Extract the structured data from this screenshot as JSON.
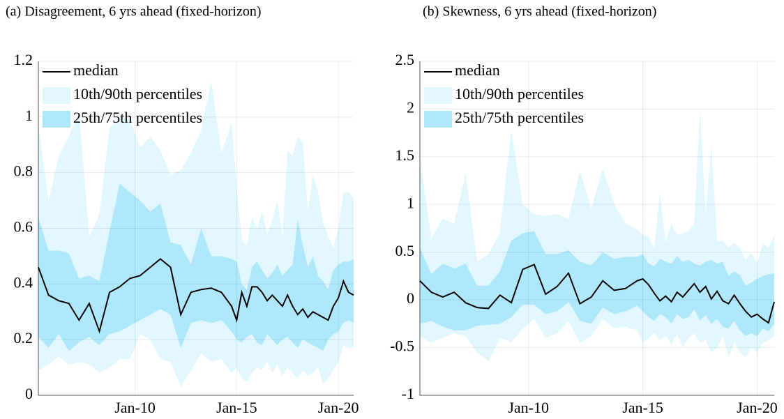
{
  "chart_data": [
    {
      "type": "band",
      "title": "(a) Disagreement, 6 yrs ahead (fixed-horizon)",
      "x": [
        2005.25,
        2005.75,
        2006.25,
        2006.75,
        2007.25,
        2007.75,
        2008.25,
        2008.75,
        2009.25,
        2009.75,
        2010.25,
        2010.75,
        2011.25,
        2011.75,
        2012.25,
        2012.75,
        2013.25,
        2013.75,
        2014.25,
        2014.75,
        2015.0,
        2015.25,
        2015.5,
        2015.75,
        2016.0,
        2016.25,
        2016.5,
        2016.75,
        2017.0,
        2017.25,
        2017.5,
        2017.75,
        2018.0,
        2018.25,
        2018.5,
        2018.75,
        2019.0,
        2019.25,
        2019.5,
        2019.75,
        2020.0,
        2020.25,
        2020.5,
        2020.75
      ],
      "xlim": [
        2005.25,
        2020.75
      ],
      "xticks": [
        {
          "value": 2010,
          "label": "Jan-10"
        },
        {
          "value": 2015,
          "label": "Jan-15"
        },
        {
          "value": 2020,
          "label": "Jan-20"
        }
      ],
      "ylim": [
        0,
        1.2
      ],
      "yticks": [
        0,
        0.2,
        0.4,
        0.6,
        0.8,
        1,
        1.2
      ],
      "grid": true,
      "series": [
        {
          "name": "median",
          "color": "#000000",
          "values": [
            0.46,
            0.36,
            0.34,
            0.33,
            0.27,
            0.33,
            0.23,
            0.37,
            0.39,
            0.42,
            0.43,
            0.46,
            0.49,
            0.46,
            0.29,
            0.37,
            0.38,
            0.385,
            0.37,
            0.32,
            0.27,
            0.37,
            0.32,
            0.39,
            0.39,
            0.37,
            0.34,
            0.36,
            0.34,
            0.32,
            0.36,
            0.32,
            0.29,
            0.31,
            0.28,
            0.3,
            0.29,
            0.28,
            0.27,
            0.32,
            0.35,
            0.41,
            0.37,
            0.36
          ]
        },
        {
          "name": "10th/90th percentiles",
          "color": "#e2f7fd",
          "lower": [
            0.09,
            0.11,
            0.14,
            0.11,
            0.12,
            0.11,
            0.08,
            0.1,
            0.13,
            0.13,
            0.22,
            0.2,
            0.13,
            0.12,
            0.03,
            0.09,
            0.15,
            0.12,
            0.13,
            0.08,
            0.1,
            0.06,
            0.05,
            0.08,
            0.1,
            0.09,
            0.12,
            0.08,
            0.11,
            0.07,
            0.1,
            0.08,
            0.06,
            0.09,
            0.07,
            0.08,
            0.1,
            0.04,
            0.06,
            0.09,
            0.12,
            0.18,
            0.17,
            0.17
          ],
          "upper": [
            0.97,
            0.7,
            0.86,
            0.93,
            1.02,
            0.57,
            0.65,
            0.96,
            1.0,
            0.99,
            0.89,
            0.93,
            0.88,
            0.79,
            0.81,
            0.87,
            0.95,
            1.13,
            0.87,
            0.98,
            0.75,
            0.56,
            0.54,
            0.64,
            0.6,
            0.66,
            0.58,
            0.63,
            0.7,
            0.57,
            0.88,
            0.86,
            0.93,
            0.91,
            0.66,
            0.79,
            0.73,
            0.62,
            0.57,
            0.53,
            0.6,
            0.73,
            0.73,
            0.71
          ]
        },
        {
          "name": "25th/75th percentiles",
          "color": "#aee8fa",
          "lower": [
            0.21,
            0.17,
            0.22,
            0.16,
            0.19,
            0.21,
            0.18,
            0.22,
            0.23,
            0.25,
            0.27,
            0.29,
            0.31,
            0.29,
            0.17,
            0.26,
            0.27,
            0.26,
            0.27,
            0.23,
            0.2,
            0.19,
            0.21,
            0.22,
            0.19,
            0.18,
            0.22,
            0.2,
            0.18,
            0.2,
            0.21,
            0.19,
            0.17,
            0.2,
            0.19,
            0.18,
            0.17,
            0.16,
            0.2,
            0.22,
            0.23,
            0.26,
            0.27,
            0.26
          ],
          "upper": [
            0.64,
            0.52,
            0.52,
            0.51,
            0.42,
            0.43,
            0.41,
            0.59,
            0.76,
            0.73,
            0.7,
            0.66,
            0.69,
            0.55,
            0.54,
            0.47,
            0.6,
            0.5,
            0.5,
            0.49,
            0.48,
            0.4,
            0.38,
            0.46,
            0.48,
            0.45,
            0.42,
            0.44,
            0.47,
            0.43,
            0.45,
            0.47,
            0.63,
            0.54,
            0.46,
            0.5,
            0.43,
            0.41,
            0.38,
            0.45,
            0.47,
            0.48,
            0.48,
            0.49
          ]
        }
      ]
    },
    {
      "type": "band",
      "title": "(b) Skewness, 6 yrs ahead (fixed-horizon)",
      "x": [
        2005.25,
        2005.75,
        2006.25,
        2006.75,
        2007.25,
        2007.75,
        2008.25,
        2008.75,
        2009.25,
        2009.75,
        2010.25,
        2010.75,
        2011.25,
        2011.75,
        2012.25,
        2012.75,
        2013.25,
        2013.75,
        2014.25,
        2014.75,
        2015.0,
        2015.25,
        2015.5,
        2015.75,
        2016.0,
        2016.25,
        2016.5,
        2016.75,
        2017.0,
        2017.25,
        2017.5,
        2017.75,
        2018.0,
        2018.25,
        2018.5,
        2018.75,
        2019.0,
        2019.25,
        2019.5,
        2019.75,
        2020.0,
        2020.25,
        2020.5,
        2020.75
      ],
      "xlim": [
        2005.25,
        2020.75
      ],
      "xticks": [
        {
          "value": 2010,
          "label": "Jan-10"
        },
        {
          "value": 2015,
          "label": "Jan-15"
        },
        {
          "value": 2020,
          "label": "Jan-20"
        }
      ],
      "ylim": [
        -1,
        2.5
      ],
      "yticks": [
        -1,
        -0.5,
        0,
        0.5,
        1,
        1.5,
        2,
        2.5
      ],
      "grid": true,
      "series": [
        {
          "name": "median",
          "color": "#000000",
          "values": [
            0.2,
            0.08,
            0.03,
            0.08,
            -0.03,
            -0.08,
            -0.09,
            0.05,
            -0.03,
            0.32,
            0.37,
            0.06,
            0.14,
            0.28,
            -0.04,
            0.03,
            0.2,
            0.1,
            0.12,
            0.2,
            0.22,
            0.16,
            0.07,
            -0.01,
            0.04,
            -0.02,
            0.08,
            0.03,
            0.1,
            0.17,
            0.08,
            0.14,
            0.01,
            0.09,
            -0.01,
            -0.04,
            0.05,
            -0.04,
            -0.12,
            -0.18,
            -0.15,
            -0.2,
            -0.24,
            -0.02
          ]
        },
        {
          "name": "10th/90th percentiles",
          "color": "#e2f7fd",
          "lower": [
            -0.38,
            -0.45,
            -0.4,
            -0.35,
            -0.38,
            -0.55,
            -0.64,
            -0.4,
            -0.44,
            -0.3,
            -0.2,
            -0.4,
            -0.35,
            -0.22,
            -0.45,
            -0.38,
            -0.2,
            -0.3,
            -0.28,
            -0.32,
            -0.45,
            -0.4,
            -0.35,
            -0.42,
            -0.38,
            -0.46,
            -0.36,
            -0.5,
            -0.4,
            -0.35,
            -0.45,
            -0.42,
            -0.55,
            -0.5,
            -0.38,
            -0.6,
            -0.45,
            -0.55,
            -0.6,
            -0.5,
            -0.55,
            -0.45,
            -0.42,
            -0.38
          ],
          "upper": [
            1.48,
            0.65,
            0.85,
            0.8,
            1.33,
            0.4,
            0.48,
            0.7,
            1.78,
            1.0,
            0.9,
            0.88,
            0.9,
            0.85,
            1.35,
            0.95,
            1.38,
            1.0,
            0.8,
            0.74,
            0.68,
            0.66,
            0.54,
            1.12,
            0.6,
            0.8,
            0.68,
            0.7,
            0.72,
            0.8,
            2.0,
            0.9,
            1.62,
            0.62,
            0.62,
            0.55,
            0.6,
            0.55,
            0.42,
            0.5,
            0.38,
            0.6,
            0.55,
            0.67
          ]
        },
        {
          "name": "25th/75th percentiles",
          "color": "#aee8fa",
          "lower": [
            -0.25,
            -0.22,
            -0.28,
            -0.32,
            -0.32,
            -0.27,
            -0.26,
            -0.25,
            -0.18,
            -0.05,
            -0.05,
            -0.15,
            -0.12,
            -0.02,
            -0.22,
            -0.25,
            -0.08,
            -0.15,
            -0.12,
            -0.06,
            -0.12,
            -0.18,
            -0.22,
            -0.15,
            -0.18,
            -0.25,
            -0.15,
            -0.2,
            -0.18,
            -0.1,
            -0.22,
            -0.16,
            -0.25,
            -0.2,
            -0.28,
            -0.3,
            -0.22,
            -0.32,
            -0.38,
            -0.35,
            -0.38,
            -0.3,
            -0.33,
            -0.25
          ],
          "upper": [
            0.55,
            0.27,
            0.38,
            0.33,
            0.38,
            0.15,
            0.15,
            0.3,
            0.62,
            0.7,
            0.72,
            0.48,
            0.48,
            0.52,
            0.4,
            0.36,
            0.5,
            0.43,
            0.45,
            0.45,
            0.48,
            0.38,
            0.35,
            0.43,
            0.4,
            0.38,
            0.46,
            0.4,
            0.42,
            0.38,
            0.36,
            0.4,
            0.42,
            0.38,
            0.4,
            0.25,
            0.3,
            0.26,
            0.15,
            0.18,
            0.22,
            0.25,
            0.27,
            0.28
          ]
        }
      ]
    }
  ]
}
